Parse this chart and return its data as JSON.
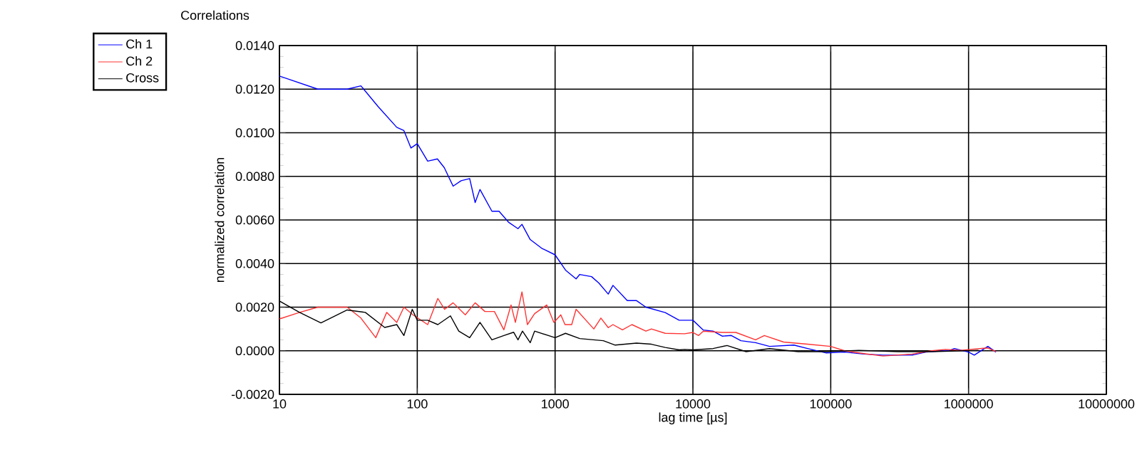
{
  "chart_data": {
    "type": "line",
    "title": "Correlations",
    "xlabel": "lag time [µs]",
    "ylabel": "normalized correlation",
    "log": "x",
    "grid": true,
    "legend": "top left",
    "marker": "none",
    "line_style": "solid",
    "xlim": [
      10,
      10000000
    ],
    "xticks": [
      10,
      100,
      1000,
      10000,
      100000,
      1000000,
      10000000
    ],
    "ylim": [
      -0.002,
      0.014
    ],
    "yticks": [
      {
        "value": -0.002,
        "label": "-0.0020"
      },
      {
        "value": 0,
        "label": "0.0000"
      },
      {
        "value": 0.002,
        "label": "0.0020"
      },
      {
        "value": 0.004,
        "label": "0.0040"
      },
      {
        "value": 0.006,
        "label": "0.0060"
      },
      {
        "value": 0.008,
        "label": "0.0080"
      },
      {
        "value": 0.01,
        "label": "0.0100"
      },
      {
        "value": 0.012,
        "label": "0.0120"
      },
      {
        "value": 0.014,
        "label": "0.0140"
      }
    ],
    "series": [
      {
        "name": "Ch 1",
        "color": "#0000ff",
        "x": [
          10,
          19,
          31,
          39,
          52,
          71,
          80,
          90,
          100,
          119,
          140,
          157,
          182,
          208,
          240,
          263,
          285,
          348,
          392,
          459,
          538,
          575,
          660,
          800,
          1000,
          1190,
          1420,
          1510,
          1840,
          2080,
          2430,
          2630,
          3340,
          3900,
          4560,
          6300,
          7950,
          10000,
          11900,
          14000,
          16300,
          19000,
          22300,
          28500,
          36000,
          54000,
          68000,
          93000,
          126000,
          174000,
          240000,
          390000,
          490000,
          730000,
          790000,
          1000000,
          1100000,
          1380000,
          1580000
        ],
        "values": [
          0.0126,
          0.012,
          0.012,
          0.01215,
          0.0112,
          0.01025,
          0.0101,
          0.0093,
          0.0095,
          0.0087,
          0.0088,
          0.0084,
          0.00755,
          0.0078,
          0.0079,
          0.0068,
          0.0074,
          0.0064,
          0.0064,
          0.0059,
          0.0056,
          0.0058,
          0.0051,
          0.0047,
          0.0044,
          0.0037,
          0.0033,
          0.0035,
          0.0034,
          0.0031,
          0.0026,
          0.003,
          0.0023,
          0.0023,
          0.002,
          0.00175,
          0.0014,
          0.0014,
          0.00095,
          0.0009,
          0.00067,
          0.0007,
          0.00046,
          0.00037,
          0.0002,
          0.00026,
          0.0001,
          -0.0001,
          -6e-05,
          -0.00015,
          -0.0002,
          -0.0002,
          -6e-05,
          2e-05,
          0.0001,
          -6e-05,
          -0.0002,
          0.0002,
          -6e-05
        ]
      },
      {
        "name": "Ch 2",
        "color": "#ff3333",
        "x": [
          10,
          14,
          19,
          31,
          39,
          50,
          60,
          71,
          80,
          93,
          119,
          141,
          158,
          182,
          223,
          263,
          310,
          363,
          425,
          479,
          515,
          575,
          630,
          710,
          870,
          980,
          1100,
          1180,
          1320,
          1420,
          1910,
          2150,
          2430,
          2630,
          3080,
          3610,
          4560,
          5000,
          6300,
          8700,
          10000,
          11000,
          11900,
          16300,
          20500,
          28500,
          33000,
          45500,
          68000,
          100000,
          126000,
          174000,
          240000,
          390000,
          540000,
          680000,
          870000,
          1380000,
          1580000
        ],
        "values": [
          0.00146,
          0.00176,
          0.002,
          0.002,
          0.0015,
          0.0006,
          0.00176,
          0.0013,
          0.002,
          0.00165,
          0.0012,
          0.0024,
          0.0019,
          0.0022,
          0.00165,
          0.0022,
          0.0018,
          0.0018,
          0.00096,
          0.0021,
          0.0013,
          0.0027,
          0.0012,
          0.0017,
          0.0021,
          0.0013,
          0.00165,
          0.0012,
          0.0012,
          0.0019,
          0.001,
          0.0015,
          0.00106,
          0.0012,
          0.00096,
          0.0012,
          0.0009,
          0.001,
          0.0008,
          0.00078,
          0.00084,
          0.0007,
          0.0009,
          0.00084,
          0.00084,
          0.0005,
          0.0007,
          0.0004,
          0.0003,
          0.0002,
          0,
          -0.00013,
          -0.00024,
          -0.00015,
          0,
          6e-05,
          2e-05,
          0.00013,
          -4e-05
        ]
      },
      {
        "name": "Cross",
        "color": "#000000",
        "x": [
          10,
          14,
          20,
          31,
          42,
          58,
          71,
          80,
          92,
          100,
          119,
          141,
          174,
          200,
          240,
          285,
          348,
          425,
          500,
          538,
          580,
          660,
          710,
          1000,
          1190,
          1510,
          2240,
          2730,
          3900,
          5000,
          6300,
          7950,
          8700,
          10000,
          14000,
          17700,
          24300,
          36000,
          58000,
          93000,
          160000,
          310000,
          540000,
          1180000
        ],
        "values": [
          0.00228,
          0.00176,
          0.00128,
          0.00187,
          0.00176,
          0.00107,
          0.0012,
          0.0007,
          0.0019,
          0.0014,
          0.0014,
          0.0012,
          0.0016,
          0.0009,
          0.0006,
          0.0013,
          0.0005,
          0.0007,
          0.00085,
          0.0005,
          0.0009,
          0.00037,
          0.0009,
          0.0006,
          0.0008,
          0.00056,
          0.00046,
          0.00026,
          0.00035,
          0.0003,
          0.00015,
          4e-05,
          6e-05,
          4e-05,
          0.0001,
          0.00024,
          -4e-05,
          0.0001,
          -4e-05,
          -4e-05,
          2e-05,
          -4e-05,
          -4e-05,
          2e-05
        ]
      }
    ]
  }
}
